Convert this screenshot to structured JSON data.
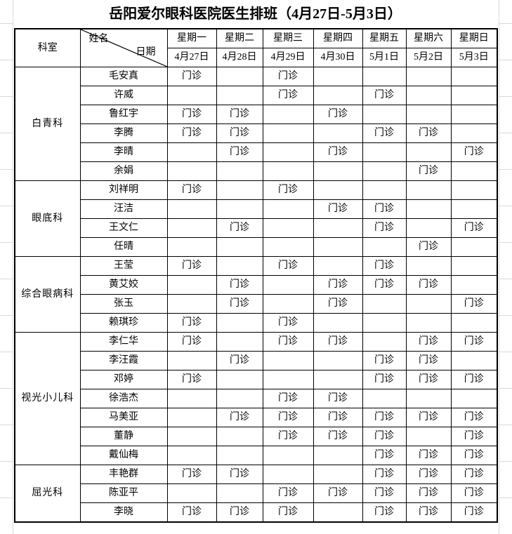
{
  "title": "岳阳爱尔眼科医院医生排班（4月27日-5月3日）",
  "clinic_label": "门诊",
  "header": {
    "dept_label": "科室",
    "name_label": "姓名",
    "date_label": "日期",
    "weekdays": [
      "星期一",
      "星期二",
      "星期三",
      "星期四",
      "星期五",
      "星期六",
      "星期日"
    ],
    "dates": [
      "4月27日",
      "4月28日",
      "4月29日",
      "4月30日",
      "5月1日",
      "5月2日",
      "5月3日"
    ]
  },
  "departments": [
    {
      "name": "白青科",
      "doctors": [
        {
          "name": "毛安真",
          "days": [
            1,
            0,
            1,
            0,
            0,
            0,
            0
          ]
        },
        {
          "name": "许威",
          "days": [
            0,
            0,
            1,
            0,
            1,
            0,
            0
          ]
        },
        {
          "name": "鲁红宇",
          "days": [
            1,
            1,
            0,
            1,
            0,
            0,
            0
          ]
        },
        {
          "name": "李腾",
          "days": [
            1,
            1,
            0,
            0,
            1,
            1,
            0
          ]
        },
        {
          "name": "李晴",
          "days": [
            0,
            1,
            0,
            1,
            0,
            0,
            1
          ]
        },
        {
          "name": "余娟",
          "days": [
            0,
            0,
            0,
            0,
            0,
            1,
            0
          ]
        }
      ]
    },
    {
      "name": "眼底科",
      "doctors": [
        {
          "name": "刘祥明",
          "days": [
            1,
            0,
            1,
            0,
            0,
            0,
            0
          ]
        },
        {
          "name": "汪洁",
          "days": [
            0,
            0,
            0,
            1,
            1,
            0,
            0
          ]
        },
        {
          "name": "王文仁",
          "days": [
            0,
            1,
            0,
            0,
            1,
            0,
            1
          ]
        },
        {
          "name": "任晴",
          "days": [
            0,
            0,
            0,
            0,
            0,
            1,
            0
          ]
        }
      ]
    },
    {
      "name": "综合眼病科",
      "doctors": [
        {
          "name": "王莹",
          "days": [
            1,
            0,
            1,
            0,
            1,
            0,
            0
          ]
        },
        {
          "name": "黄艾姣",
          "days": [
            0,
            1,
            0,
            1,
            1,
            1,
            0
          ]
        },
        {
          "name": "张玉",
          "days": [
            0,
            1,
            0,
            1,
            0,
            0,
            1
          ]
        },
        {
          "name": "赖琪珍",
          "days": [
            1,
            0,
            1,
            0,
            0,
            0,
            0
          ]
        }
      ]
    },
    {
      "name": "视光小儿科",
      "doctors": [
        {
          "name": "李仁华",
          "days": [
            1,
            0,
            1,
            1,
            0,
            1,
            1
          ]
        },
        {
          "name": "李汪霞",
          "days": [
            0,
            1,
            0,
            0,
            1,
            1,
            0
          ]
        },
        {
          "name": "邓婷",
          "days": [
            1,
            0,
            0,
            0,
            1,
            1,
            1
          ]
        },
        {
          "name": "徐浩杰",
          "days": [
            0,
            0,
            1,
            1,
            0,
            0,
            0
          ]
        },
        {
          "name": "马美亚",
          "days": [
            0,
            1,
            1,
            1,
            1,
            1,
            1
          ]
        },
        {
          "name": "董静",
          "days": [
            0,
            0,
            1,
            1,
            1,
            0,
            1
          ]
        },
        {
          "name": "戴仙梅",
          "days": [
            0,
            0,
            0,
            0,
            1,
            1,
            1
          ]
        }
      ]
    },
    {
      "name": "屈光科",
      "doctors": [
        {
          "name": "丰艳群",
          "days": [
            1,
            1,
            0,
            0,
            1,
            1,
            1
          ]
        },
        {
          "name": "陈亚平",
          "days": [
            0,
            0,
            1,
            1,
            1,
            1,
            1
          ]
        },
        {
          "name": "李晓",
          "days": [
            1,
            1,
            1,
            0,
            1,
            1,
            1
          ]
        }
      ]
    }
  ]
}
